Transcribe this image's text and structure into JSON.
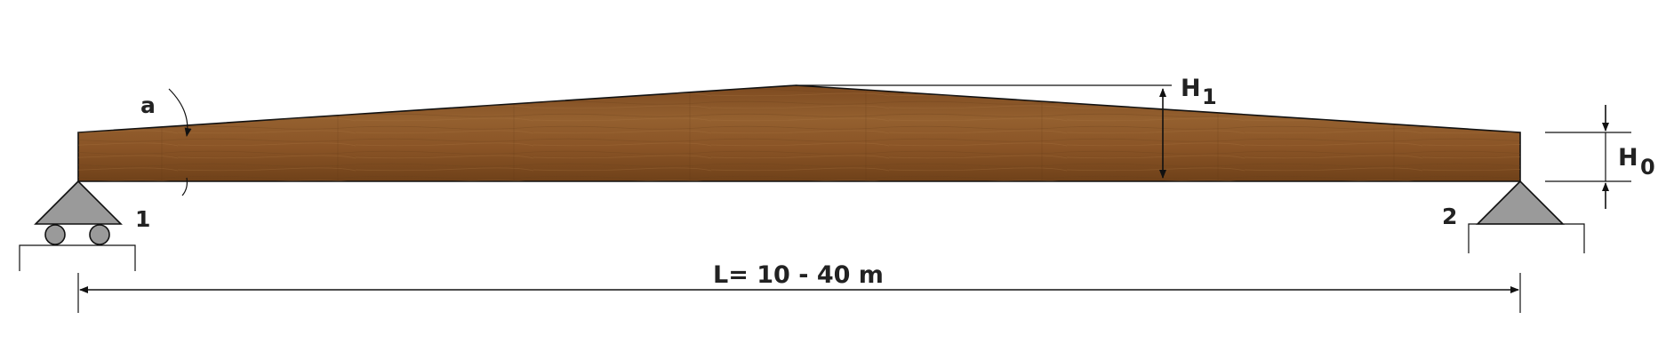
{
  "labels": {
    "angle": "a",
    "h1": "H",
    "h1_sub": "1",
    "h0": "H",
    "h0_sub": "0",
    "support_left": "1",
    "support_right": "2",
    "span": "L= 10 - 40 m"
  },
  "colors": {
    "wood_base": "#8a5426",
    "wood_light": "#a3693a",
    "wood_dark": "#6b3e1b",
    "support_fill": "#9a9a9a",
    "line": "#111111",
    "text": "#222222"
  },
  "supports": {
    "left": "roller",
    "right": "pinned"
  }
}
